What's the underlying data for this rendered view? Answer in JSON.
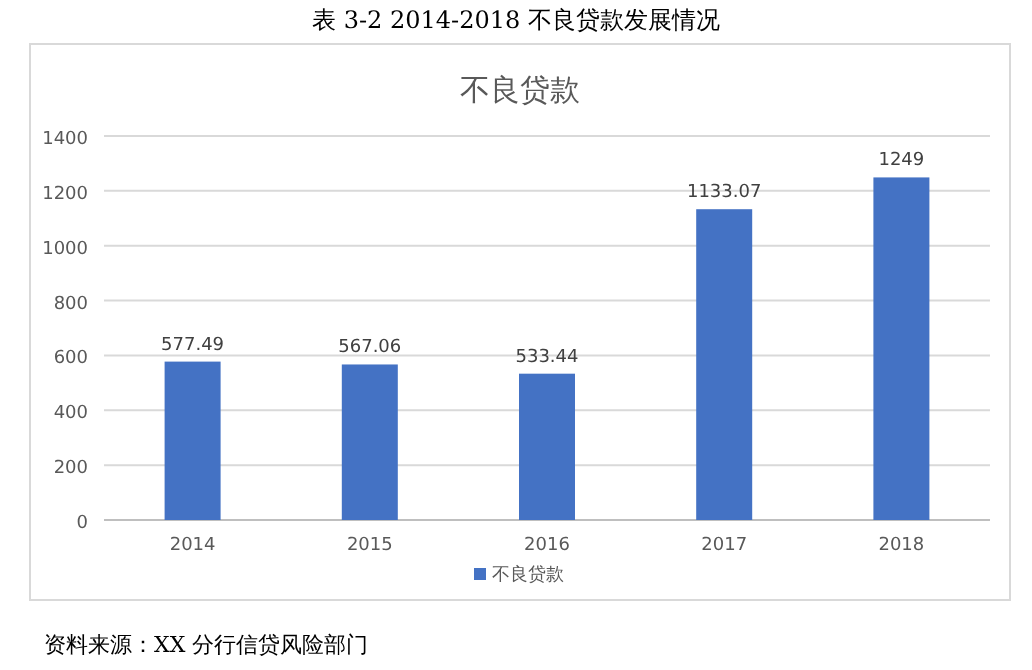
{
  "chart_data": {
    "type": "bar",
    "title": "不良贷款",
    "annotations": [
      "表 3-2 2014-2018 不良贷款发展情况",
      "资料来源：XX 分行信贷风险部门"
    ],
    "categories": [
      "2014",
      "2015",
      "2016",
      "2017",
      "2018"
    ],
    "series": [
      {
        "name": "不良贷款",
        "color": "#4472c4",
        "values": [
          577.49,
          567.06,
          533.44,
          1133.07,
          1249
        ]
      }
    ],
    "ylim": [
      0,
      1400
    ],
    "yticks": [
      0,
      200,
      400,
      600,
      800,
      1000,
      1200,
      1400
    ],
    "grid": "y",
    "legend": "bottom",
    "data_labels": true
  }
}
